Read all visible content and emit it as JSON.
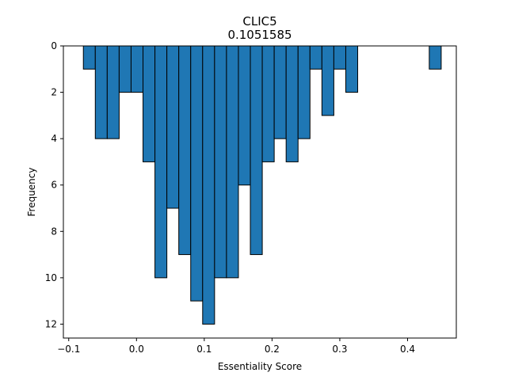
{
  "chart_data": {
    "type": "bar",
    "title": "CLIC5",
    "subtitle": "0.1051585",
    "xlabel": "Essentiality Score",
    "ylabel": "Frequency",
    "xlim": [
      -0.1079,
      0.4719
    ],
    "ylim": [
      12.6,
      0
    ],
    "y_inverted": true,
    "bar_color": "#1f77b4",
    "edge_color": "#000000",
    "x_ticks": [
      -0.1,
      0.0,
      0.1,
      0.2,
      0.3,
      0.4
    ],
    "x_tick_labels": [
      "−0.1",
      "0.0",
      "0.1",
      "0.2",
      "0.3",
      "0.4"
    ],
    "y_ticks": [
      0,
      2,
      4,
      6,
      8,
      10,
      12
    ],
    "y_tick_labels": [
      "0",
      "2",
      "4",
      "6",
      "8",
      "10",
      "12"
    ],
    "bin_edges": [
      -0.0784,
      -0.0608,
      -0.0432,
      -0.0256,
      -0.008,
      0.0096,
      0.0272,
      0.0448,
      0.0624,
      0.08,
      0.0976,
      0.1152,
      0.1328,
      0.1504,
      0.168,
      0.1856,
      0.2032,
      0.2208,
      0.2384,
      0.256,
      0.2736,
      0.2912,
      0.3088,
      0.3264,
      0.344,
      0.3616,
      0.3792,
      0.3968,
      0.4144,
      0.432,
      0.4496
    ],
    "counts": [
      1,
      4,
      4,
      2,
      2,
      5,
      10,
      7,
      9,
      11,
      12,
      10,
      10,
      6,
      9,
      5,
      4,
      5,
      4,
      1,
      3,
      1,
      2,
      0,
      0,
      0,
      0,
      0,
      0,
      1
    ]
  }
}
